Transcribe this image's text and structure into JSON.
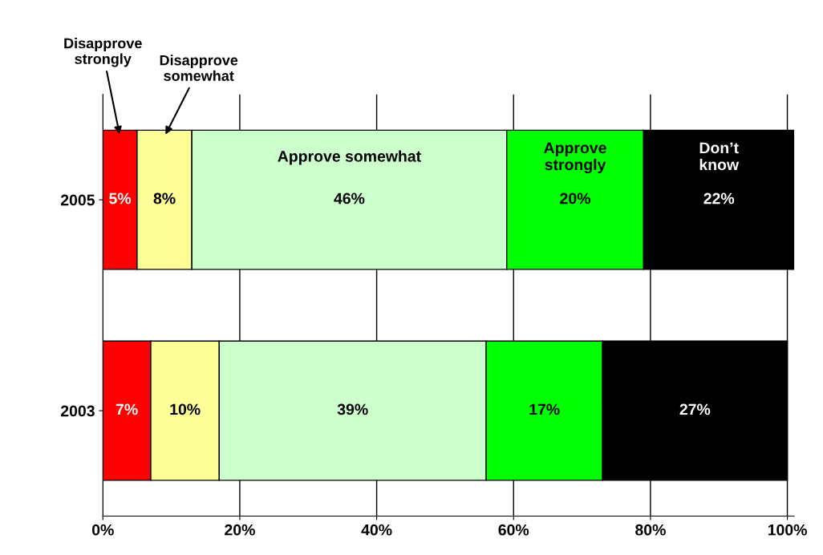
{
  "chart_data": {
    "type": "bar",
    "orientation": "horizontal",
    "stacked": true,
    "categories": [
      "2005",
      "2003"
    ],
    "series": [
      {
        "name": "Disapprove strongly",
        "color": "#ff0000",
        "values": [
          5,
          7
        ],
        "value_labels": [
          "5%",
          "7%"
        ]
      },
      {
        "name": "Disapprove somewhat",
        "color": "#ffff99",
        "values": [
          8,
          10
        ],
        "value_labels": [
          "8%",
          "10%"
        ]
      },
      {
        "name": "Approve somewhat",
        "color": "#ccffcc",
        "values": [
          46,
          39
        ],
        "value_labels": [
          "46%",
          "39%"
        ]
      },
      {
        "name": "Approve strongly",
        "color": "#00ff00",
        "values": [
          20,
          17
        ],
        "value_labels": [
          "20%",
          "17%"
        ]
      },
      {
        "name": "Don’t know",
        "color": "#000000",
        "values": [
          22,
          27
        ],
        "value_labels": [
          "22%",
          "27%"
        ]
      }
    ],
    "xlim": [
      0,
      101
    ],
    "xticks": [
      {
        "value": 0,
        "label": "0%"
      },
      {
        "value": 20,
        "label": "20%"
      },
      {
        "value": 40,
        "label": "40%"
      },
      {
        "value": 60,
        "label": "60%"
      },
      {
        "value": 80,
        "label": "80%"
      },
      {
        "value": 100,
        "label": "100%"
      }
    ],
    "grid": "x",
    "legend": false
  }
}
